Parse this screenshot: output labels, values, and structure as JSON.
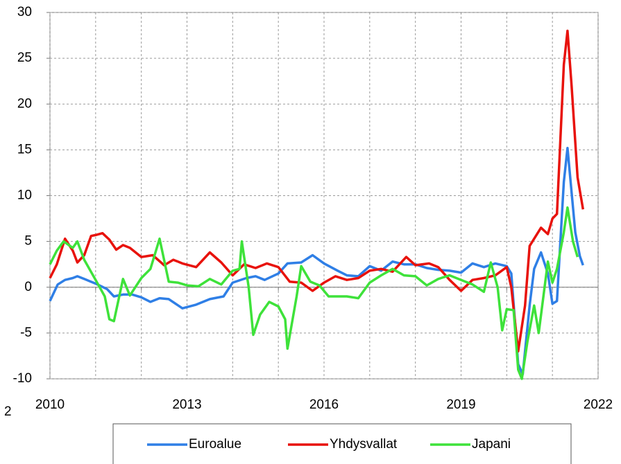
{
  "chart_data": {
    "type": "line",
    "fragment": "2",
    "xlim": [
      2010,
      2022
    ],
    "xticks": [
      2010,
      2013,
      2016,
      2019,
      2022
    ],
    "xgrid": [
      2011,
      2012,
      2014,
      2015,
      2017,
      2018,
      2020,
      2021
    ],
    "ylim": [
      -10,
      30
    ],
    "yticks": [
      -10,
      -5,
      0,
      5,
      10,
      15,
      20,
      25,
      30
    ],
    "grid": true,
    "series": [
      {
        "name": "Euroalue",
        "color": "#2f7fe6",
        "x": [
          2010.0,
          2010.17,
          2010.33,
          2010.5,
          2010.6,
          2010.75,
          2011.0,
          2011.25,
          2011.4,
          2011.6,
          2011.8,
          2012.0,
          2012.2,
          2012.4,
          2012.6,
          2012.9,
          2013.2,
          2013.5,
          2013.8,
          2014.0,
          2014.3,
          2014.5,
          2014.7,
          2015.0,
          2015.2,
          2015.5,
          2015.75,
          2016.0,
          2016.3,
          2016.5,
          2016.75,
          2017.0,
          2017.25,
          2017.5,
          2017.75,
          2018.0,
          2018.25,
          2018.5,
          2018.75,
          2019.0,
          2019.25,
          2019.5,
          2019.75,
          2020.0,
          2020.1,
          2020.25,
          2020.35,
          2020.5,
          2020.6,
          2020.75,
          2020.9,
          2021.0,
          2021.1,
          2021.25,
          2021.33,
          2021.5,
          2021.6,
          2021.67
        ],
        "values": [
          -1.5,
          0.3,
          0.8,
          1.0,
          1.2,
          0.9,
          0.4,
          -0.2,
          -1.0,
          -0.8,
          -0.8,
          -1.1,
          -1.6,
          -1.2,
          -1.3,
          -2.3,
          -1.9,
          -1.3,
          -1.0,
          0.5,
          1.0,
          1.2,
          0.8,
          1.5,
          2.6,
          2.7,
          3.5,
          2.6,
          1.8,
          1.3,
          1.2,
          2.3,
          1.8,
          2.8,
          2.5,
          2.5,
          2.1,
          1.9,
          1.8,
          1.6,
          2.6,
          2.2,
          2.6,
          2.3,
          1.5,
          -8.4,
          -9.5,
          -2.0,
          2.0,
          3.8,
          1.5,
          -1.8,
          -1.5,
          11.5,
          15.2,
          6.0,
          3.4,
          2.4
        ]
      },
      {
        "name": "Yhdysvallat",
        "color": "#e8120c",
        "x": [
          2010.0,
          2010.15,
          2010.33,
          2010.5,
          2010.6,
          2010.75,
          2010.9,
          2011.0,
          2011.15,
          2011.3,
          2011.45,
          2011.6,
          2011.75,
          2012.0,
          2012.25,
          2012.5,
          2012.7,
          2012.9,
          2013.2,
          2013.5,
          2013.75,
          2014.0,
          2014.25,
          2014.5,
          2014.75,
          2015.0,
          2015.25,
          2015.5,
          2015.75,
          2016.0,
          2016.25,
          2016.5,
          2016.75,
          2017.0,
          2017.25,
          2017.5,
          2017.8,
          2018.0,
          2018.3,
          2018.5,
          2018.75,
          2019.0,
          2019.25,
          2019.5,
          2019.75,
          2020.0,
          2020.1,
          2020.25,
          2020.4,
          2020.5,
          2020.75,
          2020.9,
          2021.0,
          2021.1,
          2021.25,
          2021.33,
          2021.42,
          2021.55,
          2021.67
        ],
        "values": [
          1.0,
          2.5,
          5.3,
          4.0,
          2.7,
          3.5,
          5.6,
          5.7,
          5.9,
          5.2,
          4.1,
          4.6,
          4.3,
          3.3,
          3.5,
          2.4,
          3.0,
          2.6,
          2.2,
          3.8,
          2.7,
          1.3,
          2.5,
          2.1,
          2.6,
          2.2,
          0.6,
          0.5,
          -0.4,
          0.5,
          1.2,
          0.8,
          1.0,
          1.8,
          2.0,
          1.7,
          3.3,
          2.4,
          2.6,
          2.2,
          0.8,
          -0.4,
          0.8,
          1.0,
          1.3,
          2.2,
          0,
          -7.0,
          -2.0,
          4.5,
          6.5,
          5.8,
          7.5,
          8.0,
          24.3,
          28.0,
          22.0,
          12.0,
          8.5
        ]
      },
      {
        "name": "Japani",
        "color": "#3ee23a",
        "x": [
          2010.0,
          2010.15,
          2010.3,
          2010.5,
          2010.6,
          2010.75,
          2011.0,
          2011.2,
          2011.3,
          2011.4,
          2011.6,
          2011.75,
          2012.0,
          2012.2,
          2012.4,
          2012.6,
          2012.8,
          2013.0,
          2013.25,
          2013.5,
          2013.75,
          2014.0,
          2014.15,
          2014.2,
          2014.35,
          2014.45,
          2014.6,
          2014.8,
          2015.0,
          2015.15,
          2015.2,
          2015.4,
          2015.5,
          2015.7,
          2015.9,
          2016.1,
          2016.5,
          2016.75,
          2017.0,
          2017.25,
          2017.5,
          2017.75,
          2018.0,
          2018.25,
          2018.5,
          2018.75,
          2019.0,
          2019.25,
          2019.5,
          2019.65,
          2019.8,
          2019.9,
          2020.0,
          2020.15,
          2020.25,
          2020.33,
          2020.45,
          2020.6,
          2020.7,
          2020.9,
          2021.0,
          2021.1,
          2021.25,
          2021.33,
          2021.45,
          2021.55
        ],
        "values": [
          2.5,
          4.0,
          5.0,
          4.3,
          5.0,
          3.0,
          0.8,
          -1.0,
          -3.5,
          -3.7,
          0.9,
          -0.9,
          1.0,
          2.0,
          5.3,
          0.6,
          0.5,
          0.2,
          0.1,
          0.9,
          0.3,
          1.8,
          2.0,
          5.0,
          0,
          -5.2,
          -3.0,
          -1.6,
          -2.1,
          -3.5,
          -6.7,
          -1.0,
          2.3,
          0.6,
          0.2,
          -1.0,
          -1.0,
          -1.2,
          0.5,
          1.3,
          2.0,
          1.3,
          1.2,
          0.2,
          0.9,
          1.3,
          0.8,
          0.3,
          -0.5,
          2.7,
          0,
          -4.7,
          -2.4,
          -2.5,
          -9.0,
          -10.0,
          -6.0,
          -2.0,
          -5.0,
          2.8,
          0.5,
          2.0,
          6.0,
          8.7,
          5.0,
          3.3
        ]
      }
    ]
  }
}
